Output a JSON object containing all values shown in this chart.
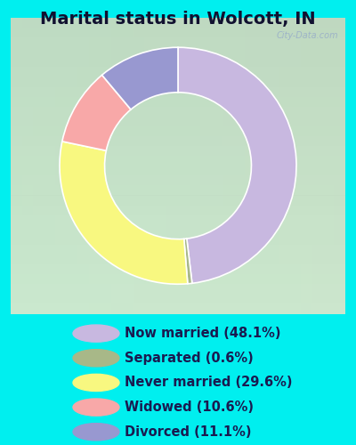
{
  "title": "Marital status in Wolcott, IN",
  "title_fontsize": 14,
  "background_outer": "#00EFEF",
  "slices": [
    {
      "label": "Now married (48.1%)",
      "value": 48.1,
      "color": "#c8b8e0"
    },
    {
      "label": "Separated (0.6%)",
      "value": 0.6,
      "color": "#a8b888"
    },
    {
      "label": "Never married (29.6%)",
      "value": 29.6,
      "color": "#f8f880"
    },
    {
      "label": "Widowed (10.6%)",
      "value": 10.6,
      "color": "#f8a8a8"
    },
    {
      "label": "Divorced (11.1%)",
      "value": 11.1,
      "color": "#9898d0"
    }
  ],
  "legend_text_color": "#1a1a50",
  "legend_fontsize": 10.5,
  "watermark": "City-Data.com",
  "watermark_color": "#9ab0c8",
  "start_angle": 90,
  "chart_panel_color_tl": "#d8eed8",
  "chart_panel_color_br": "#c0e8d0"
}
